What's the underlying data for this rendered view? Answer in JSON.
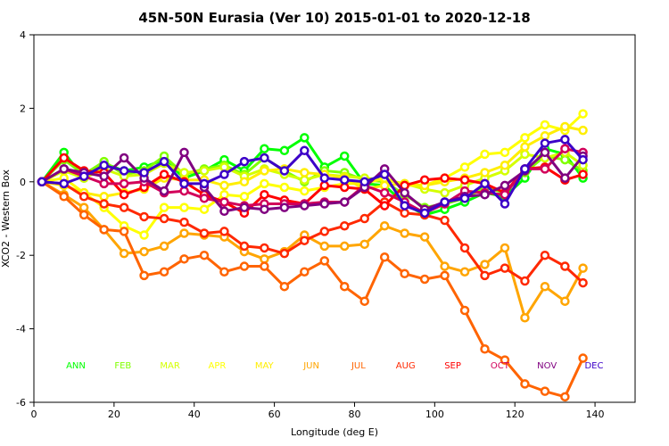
{
  "chart_data": {
    "type": "line",
    "title": "45N-50N Eurasia (Ver 10)   2015-01-01 to 2020-12-18",
    "xlabel": "Longitude (deg E)",
    "ylabel": "XCO2 - Western Box",
    "xlim": [
      0,
      150
    ],
    "ylim": [
      -6,
      4
    ],
    "xticks": [
      0,
      20,
      40,
      60,
      80,
      100,
      120,
      140
    ],
    "yticks": [
      -6,
      -4,
      -2,
      0,
      2,
      4
    ],
    "x": [
      2,
      7.5,
      12.5,
      17.5,
      22.5,
      27.5,
      32.5,
      37.5,
      42.5,
      47.5,
      52.5,
      57.5,
      62.5,
      67.5,
      72.5,
      77.5,
      82.5,
      87.5,
      92.5,
      97.5,
      102.5,
      107.5,
      112.5,
      117.5,
      122.5,
      127.5,
      132.5,
      137
    ],
    "series": [
      {
        "name": "ANN",
        "color": "#00ff00",
        "values": [
          0,
          0.8,
          0.1,
          0.5,
          0.3,
          0.4,
          0.6,
          0.1,
          0.3,
          0.6,
          0.3,
          0.9,
          0.85,
          1.2,
          0.4,
          0.7,
          -0.05,
          -0.1,
          -0.6,
          -0.9,
          -0.75,
          -0.55,
          -0.3,
          -0.4,
          0.1,
          0.9,
          0.75,
          0.1
        ]
      },
      {
        "name": "FEB",
        "color": "#80ff00",
        "values": [
          0,
          0.6,
          0.2,
          0.55,
          0.2,
          0.3,
          0.7,
          0.2,
          0.35,
          0.45,
          0.2,
          0.65,
          0.3,
          0.0,
          0.3,
          0.25,
          0.05,
          0.0,
          -0.35,
          -0.7,
          -0.6,
          -0.45,
          -0.15,
          -0.3,
          0.25,
          0.7,
          0.6,
          0.3
        ]
      },
      {
        "name": "MAR",
        "color": "#d4ff00",
        "values": [
          0,
          0.3,
          0.1,
          0.35,
          0.15,
          0.2,
          0.5,
          0.25,
          0.3,
          0.4,
          0.15,
          0.35,
          0.2,
          0.05,
          0.2,
          0.15,
          0.1,
          0.05,
          -0.05,
          -0.2,
          -0.3,
          -0.1,
          0.1,
          0.3,
          0.75,
          0.65,
          0.8,
          0.45
        ]
      },
      {
        "name": "APR",
        "color": "#ffff00",
        "values": [
          0,
          0.1,
          -0.3,
          -0.7,
          -1.2,
          -1.45,
          -0.7,
          -0.7,
          -0.75,
          -0.35,
          -0.4,
          -0.05,
          -0.15,
          -0.25,
          -0.15,
          -0.05,
          -0.05,
          0.1,
          -0.1,
          -0.1,
          0.1,
          0.4,
          0.75,
          0.8,
          1.2,
          1.55,
          1.4,
          1.85
        ]
      },
      {
        "name": "MAY",
        "color": "#ffee00",
        "values": [
          0,
          -0.1,
          -0.3,
          -0.4,
          -0.3,
          -0.2,
          0.1,
          0.05,
          0.05,
          -0.1,
          0.0,
          0.3,
          0.35,
          0.25,
          0.2,
          0.1,
          -0.2,
          -0.1,
          -0.05,
          -0.1,
          0.0,
          0.1,
          0.25,
          0.45,
          0.95,
          1.25,
          1.5,
          1.4
        ]
      },
      {
        "name": "JUN",
        "color": "#ffa500",
        "values": [
          0,
          -0.35,
          -0.7,
          -1.3,
          -1.95,
          -1.9,
          -1.75,
          -1.4,
          -1.45,
          -1.5,
          -1.9,
          -2.1,
          -1.9,
          -1.45,
          -1.75,
          -1.75,
          -1.7,
          -1.2,
          -1.4,
          -1.5,
          -2.3,
          -2.45,
          -2.25,
          -1.8,
          -3.7,
          -2.85,
          -3.25,
          -2.35
        ]
      },
      {
        "name": "JUL",
        "color": "#ff6400",
        "values": [
          0,
          -0.4,
          -0.9,
          -1.3,
          -1.35,
          -2.55,
          -2.45,
          -2.1,
          -2.0,
          -2.45,
          -2.3,
          -2.3,
          -2.85,
          -2.45,
          -2.15,
          -2.85,
          -3.25,
          -2.05,
          -2.5,
          -2.65,
          -2.55,
          -3.5,
          -4.55,
          -4.85,
          -5.5,
          -5.7,
          -5.85,
          -4.8
        ]
      },
      {
        "name": "AUG",
        "color": "#ff2800",
        "values": [
          0,
          -0.05,
          -0.4,
          -0.6,
          -0.7,
          -0.95,
          -1.0,
          -1.1,
          -1.4,
          -1.35,
          -1.75,
          -1.8,
          -1.95,
          -1.6,
          -1.35,
          -1.2,
          -1.0,
          -0.55,
          -0.85,
          -0.9,
          -1.05,
          -1.8,
          -2.55,
          -2.35,
          -2.7,
          -2.0,
          -2.3,
          -2.75
        ]
      },
      {
        "name": "SEP",
        "color": "#ff0000",
        "values": [
          0,
          0.65,
          0.3,
          0.25,
          -0.35,
          -0.15,
          0.2,
          0.0,
          -0.35,
          -0.55,
          -0.85,
          -0.35,
          -0.5,
          -0.6,
          -0.1,
          -0.15,
          -0.2,
          -0.65,
          -0.1,
          0.05,
          0.1,
          0.05,
          -0.05,
          -0.3,
          0.35,
          0.4,
          0.05,
          0.2
        ]
      },
      {
        "name": "OCT",
        "color": "#d2005a",
        "values": [
          0,
          0.35,
          0.15,
          -0.05,
          -0.05,
          0.0,
          -0.3,
          -0.25,
          -0.45,
          -0.55,
          -0.65,
          -0.6,
          -0.6,
          -0.6,
          -0.55,
          -0.55,
          -0.1,
          -0.3,
          -0.55,
          -0.85,
          -0.6,
          -0.25,
          -0.3,
          -0.35,
          0.35,
          0.35,
          0.9,
          0.8
        ]
      },
      {
        "name": "NOV",
        "color": "#800080",
        "values": [
          0,
          0.35,
          0.25,
          0.15,
          0.65,
          0.1,
          -0.25,
          0.8,
          -0.15,
          -0.8,
          -0.7,
          -0.75,
          -0.7,
          -0.65,
          -0.6,
          -0.55,
          -0.15,
          0.35,
          -0.3,
          -0.75,
          -0.55,
          -0.4,
          -0.35,
          -0.1,
          0.3,
          0.8,
          0.1,
          0.7
        ]
      },
      {
        "name": "DEC",
        "color": "#3c00c8",
        "values": [
          0,
          -0.05,
          0.15,
          0.45,
          0.3,
          0.25,
          0.55,
          -0.05,
          -0.05,
          0.2,
          0.55,
          0.65,
          0.3,
          0.85,
          0.1,
          0.05,
          0.0,
          0.2,
          -0.65,
          -0.85,
          -0.55,
          -0.45,
          -0.05,
          -0.6,
          0.35,
          1.05,
          1.15,
          0.6
        ]
      }
    ],
    "legend_placement": "bottom",
    "grid": false
  }
}
